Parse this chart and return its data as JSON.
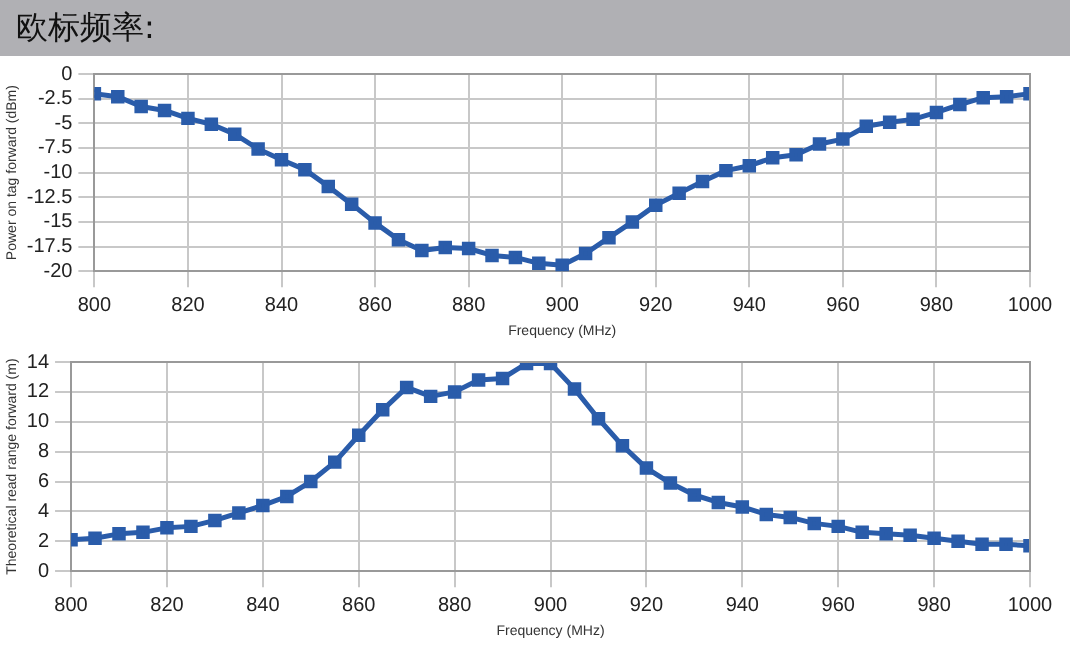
{
  "chart_data": [
    {
      "type": "line",
      "title": "欧标频率:",
      "xlabel": "Frequency (MHz)",
      "ylabel": "Power on tag forward (dBm)",
      "x": [
        800,
        805,
        810,
        815,
        820,
        825,
        830,
        835,
        840,
        845,
        850,
        855,
        860,
        865,
        870,
        875,
        880,
        885,
        890,
        895,
        900,
        905,
        910,
        915,
        920,
        925,
        930,
        935,
        940,
        945,
        950,
        955,
        960,
        965,
        970,
        975,
        980,
        985,
        990,
        995,
        1000
      ],
      "series": [
        {
          "color": "#2a5caa",
          "values": [
            -2,
            -2.3,
            -3.3,
            -3.7,
            -4.5,
            -5.1,
            -6.1,
            -7.6,
            -8.7,
            -9.7,
            -11.4,
            -13.2,
            -15.1,
            -16.8,
            -17.9,
            -17.6,
            -17.7,
            -18.4,
            -18.6,
            -19.2,
            -19.4,
            -18.2,
            -16.6,
            -15,
            -13.3,
            -12.1,
            -10.9,
            -9.8,
            -9.3,
            -8.5,
            -8.2,
            -7.1,
            -6.6,
            -5.3,
            -4.9,
            -4.6,
            -3.9,
            -3.1,
            -2.4,
            -2.3,
            -2
          ]
        }
      ],
      "xlim": [
        800,
        1000
      ],
      "xticks": [
        800,
        820,
        840,
        860,
        880,
        900,
        920,
        940,
        960,
        980,
        1000
      ],
      "ylim": [
        -20,
        0
      ],
      "yticks": [
        -20,
        -17.5,
        -15,
        -12.5,
        -10,
        -7.5,
        -5,
        -2.5,
        0
      ],
      "grid": true,
      "marker": "square",
      "line_style": "solid"
    },
    {
      "type": "line",
      "xlabel": "Frequency (MHz)",
      "ylabel": "Theoretical read range forward (m)",
      "x": [
        800,
        805,
        810,
        815,
        820,
        825,
        830,
        835,
        840,
        845,
        850,
        855,
        860,
        865,
        870,
        875,
        880,
        885,
        890,
        895,
        900,
        905,
        910,
        915,
        920,
        925,
        930,
        935,
        940,
        945,
        950,
        955,
        960,
        965,
        970,
        975,
        980,
        985,
        990,
        995,
        1000
      ],
      "series": [
        {
          "color": "#2a5caa",
          "values": [
            2.1,
            2.2,
            2.5,
            2.6,
            2.9,
            3.0,
            3.4,
            3.9,
            4.4,
            5.0,
            6.0,
            7.3,
            9.1,
            10.8,
            12.3,
            11.7,
            12.0,
            12.8,
            12.9,
            13.9,
            13.9,
            12.2,
            10.2,
            8.4,
            6.9,
            5.9,
            5.1,
            4.6,
            4.3,
            3.8,
            3.6,
            3.2,
            3.0,
            2.6,
            2.5,
            2.4,
            2.2,
            2.0,
            1.8,
            1.8,
            1.7
          ]
        }
      ],
      "xlim": [
        800,
        1000
      ],
      "xticks": [
        800,
        820,
        840,
        860,
        880,
        900,
        920,
        940,
        960,
        980,
        1000
      ],
      "ylim": [
        0,
        14
      ],
      "yticks": [
        0,
        2,
        4,
        6,
        8,
        10,
        12,
        14
      ],
      "grid": true,
      "marker": "square",
      "line_style": "solid"
    }
  ]
}
